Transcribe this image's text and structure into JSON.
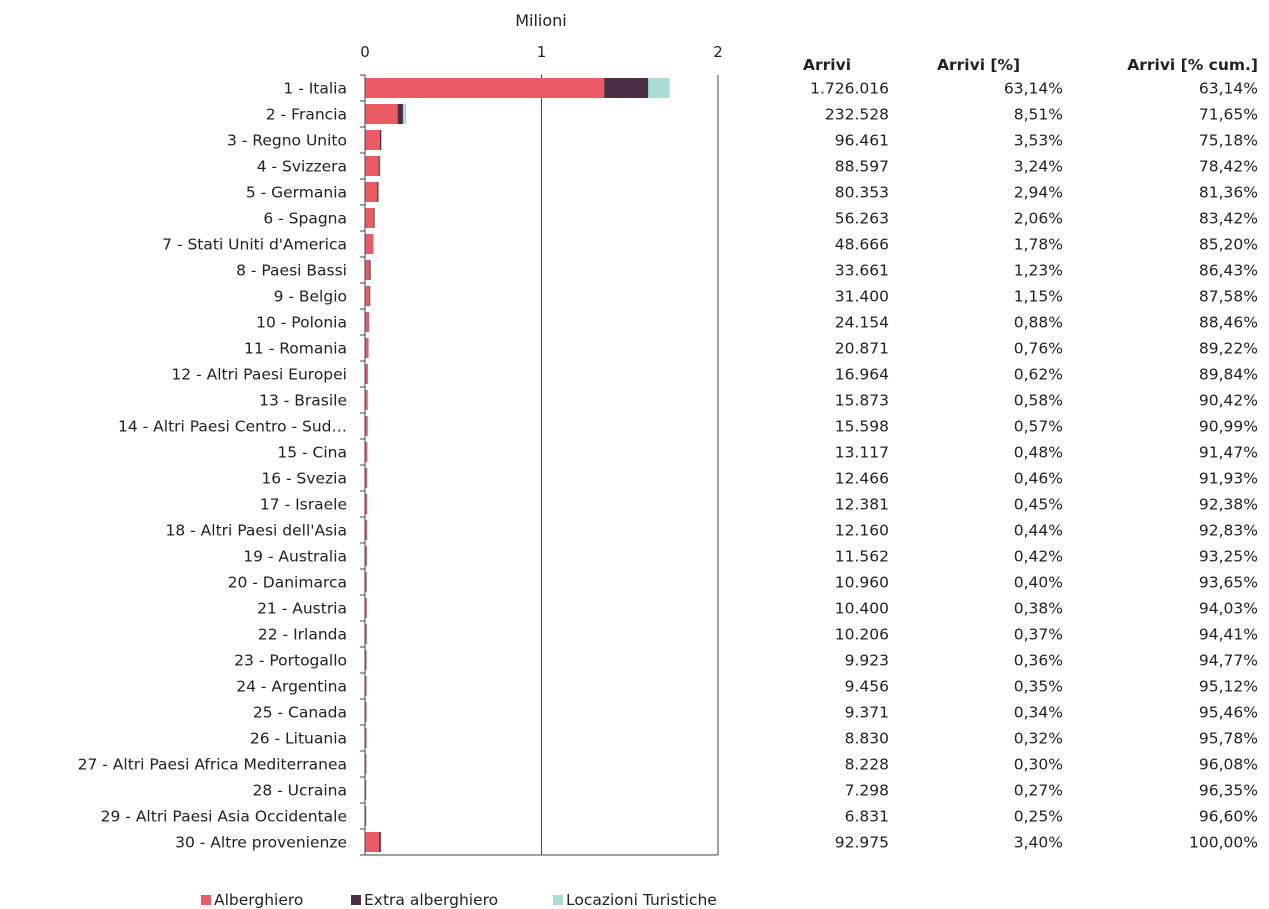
{
  "chart_data": {
    "type": "bar",
    "orientation": "horizontal",
    "stacked": true,
    "axis_title": "Milioni",
    "xlim": [
      0,
      2
    ],
    "x_ticks": [
      "0",
      "1",
      "2"
    ],
    "categories": [
      "1 - Italia",
      "2 - Francia",
      "3 - Regno Unito",
      "4 - Svizzera",
      "5 - Germania",
      "6 - Spagna",
      "7 - Stati Uniti d'America",
      "8 - Paesi Bassi",
      "9 - Belgio",
      "10 - Polonia",
      "11 - Romania",
      "12 - Altri Paesi Europei",
      "13 - Brasile",
      "14 - Altri Paesi Centro - Sud…",
      "15 - Cina",
      "16 - Svezia",
      "17 - Israele",
      "18 - Altri Paesi dell'Asia",
      "19 - Australia",
      "20 - Danimarca",
      "21 - Austria",
      "22 - Irlanda",
      "23 - Portogallo",
      "24 - Argentina",
      "25 - Canada",
      "26 - Lituania",
      "27 - Altri Paesi Africa Mediterranea",
      "28 - Ucraina",
      "29 - Altri Paesi Asia Occidentale",
      "30 - Altre provenienze"
    ],
    "series": [
      {
        "name": "Alberghiero",
        "color": "#ec5a63",
        "values": [
          1.355,
          0.185,
          0.085,
          0.077,
          0.069,
          0.049,
          0.045,
          0.026,
          0.026,
          0.021,
          0.019,
          0.014,
          0.014,
          0.013,
          0.012,
          0.011,
          0.011,
          0.01,
          0.01,
          0.009,
          0.009,
          0.009,
          0.008,
          0.008,
          0.008,
          0.008,
          0.007,
          0.006,
          0.006,
          0.08
        ]
      },
      {
        "name": "Extra alberghiero",
        "color": "#4b2e45",
        "values": [
          0.25,
          0.03,
          0.007,
          0.007,
          0.007,
          0.005,
          0.002,
          0.006,
          0.004,
          0.002,
          0.001,
          0.002,
          0.001,
          0.002,
          0.001,
          0.001,
          0.001,
          0.002,
          0.001,
          0.001,
          0.001,
          0.001,
          0.001,
          0.001,
          0.001,
          0.001,
          0.001,
          0.001,
          0.001,
          0.01
        ]
      },
      {
        "name": "Locazioni Turistiche",
        "color": "#a9ddd3",
        "values": [
          0.121,
          0.018,
          0.004,
          0.005,
          0.004,
          0.002,
          0.002,
          0.002,
          0.001,
          0.001,
          0.001,
          0.001,
          0.001,
          0.001,
          0.0,
          0.0,
          0.0,
          0.0,
          0.001,
          0.001,
          0.0,
          0.0,
          0.001,
          0.0,
          0.0,
          0.0,
          0.0,
          0.0,
          0.0,
          0.003
        ]
      }
    ],
    "legend_position": "bottom",
    "gridlines": true
  },
  "table": {
    "headers": [
      "Arrivi",
      "Arrivi [%]",
      "Arrivi [% cum.]"
    ],
    "rows": [
      [
        "1.726.016",
        "63,14%",
        "63,14%"
      ],
      [
        "232.528",
        "8,51%",
        "71,65%"
      ],
      [
        "96.461",
        "3,53%",
        "75,18%"
      ],
      [
        "88.597",
        "3,24%",
        "78,42%"
      ],
      [
        "80.353",
        "2,94%",
        "81,36%"
      ],
      [
        "56.263",
        "2,06%",
        "83,42%"
      ],
      [
        "48.666",
        "1,78%",
        "85,20%"
      ],
      [
        "33.661",
        "1,23%",
        "86,43%"
      ],
      [
        "31.400",
        "1,15%",
        "87,58%"
      ],
      [
        "24.154",
        "0,88%",
        "88,46%"
      ],
      [
        "20.871",
        "0,76%",
        "89,22%"
      ],
      [
        "16.964",
        "0,62%",
        "89,84%"
      ],
      [
        "15.873",
        "0,58%",
        "90,42%"
      ],
      [
        "15.598",
        "0,57%",
        "90,99%"
      ],
      [
        "13.117",
        "0,48%",
        "91,47%"
      ],
      [
        "12.466",
        "0,46%",
        "91,93%"
      ],
      [
        "12.381",
        "0,45%",
        "92,38%"
      ],
      [
        "12.160",
        "0,44%",
        "92,83%"
      ],
      [
        "11.562",
        "0,42%",
        "93,25%"
      ],
      [
        "10.960",
        "0,40%",
        "93,65%"
      ],
      [
        "10.400",
        "0,38%",
        "94,03%"
      ],
      [
        "10.206",
        "0,37%",
        "94,41%"
      ],
      [
        "9.923",
        "0,36%",
        "94,77%"
      ],
      [
        "9.456",
        "0,35%",
        "95,12%"
      ],
      [
        "9.371",
        "0,34%",
        "95,46%"
      ],
      [
        "8.830",
        "0,32%",
        "95,78%"
      ],
      [
        "8.228",
        "0,30%",
        "96,08%"
      ],
      [
        "7.298",
        "0,27%",
        "96,35%"
      ],
      [
        "6.831",
        "0,25%",
        "96,60%"
      ],
      [
        "92.975",
        "3,40%",
        "100,00%"
      ]
    ]
  }
}
